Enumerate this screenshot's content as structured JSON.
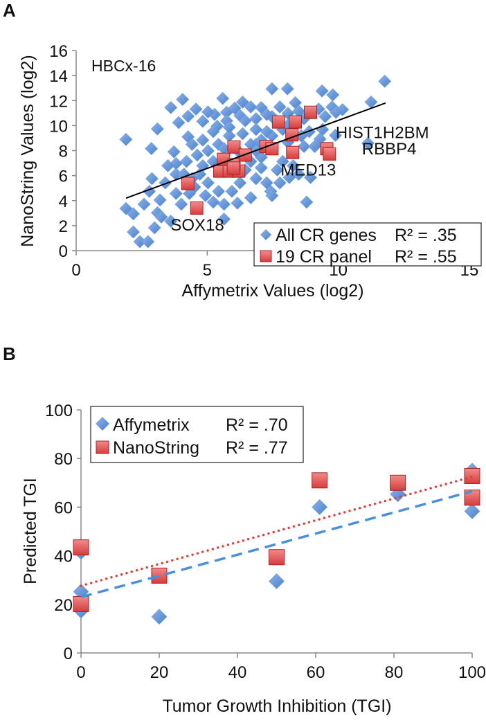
{
  "colors": {
    "affy": "#5a8fd6",
    "affy_dark": "#3f70b8",
    "nano": "#e05454",
    "nano_dark": "#a82222",
    "trend_nano": "#d9453d",
    "trend_affy": "#4a90d9"
  },
  "chart_data": [
    {
      "panel": "A",
      "type": "scatter",
      "annotation": "HBCx-16",
      "xlabel": "Affymetrix Values (log2)",
      "ylabel": "NanoString Values (log2)",
      "xlim": [
        0,
        15
      ],
      "ylim": [
        0,
        16
      ],
      "xticks": [
        "0",
        "5",
        "10",
        "15"
      ],
      "yticks": [
        "0",
        "2",
        "4",
        "6",
        "8",
        "10",
        "12",
        "14",
        "16"
      ],
      "legend_position": "bottom-right",
      "series": [
        {
          "name": "All CR genes",
          "r2_label": "R² = .35",
          "marker": "diamond",
          "points": [
            [
              1.9,
              8.89
            ],
            [
              3.1,
              9.73
            ],
            [
              2.87,
              8.16
            ],
            [
              3.61,
              11.44
            ],
            [
              4.06,
              12.09
            ],
            [
              3.91,
              10.24
            ],
            [
              4.27,
              10.75
            ],
            [
              4.57,
              11.32
            ],
            [
              3.73,
              7.9
            ],
            [
              4.27,
              9.1
            ],
            [
              4.83,
              10.34
            ],
            [
              5.28,
              10.89
            ],
            [
              5.59,
              12.17
            ],
            [
              5.03,
              11.09
            ],
            [
              5.74,
              11.06
            ],
            [
              6.35,
              11.88
            ],
            [
              6.66,
              11.49
            ],
            [
              7.06,
              11.44
            ],
            [
              7.47,
              12.94
            ],
            [
              8.06,
              12.94
            ],
            [
              9.38,
              12.77
            ],
            [
              9.79,
              12.46
            ],
            [
              11.77,
              13.54
            ],
            [
              11.25,
              11.88
            ],
            [
              10.16,
              11.27
            ],
            [
              9.76,
              11.49
            ],
            [
              9.25,
              11.32
            ],
            [
              8.36,
              11.83
            ],
            [
              7.77,
              11.49
            ],
            [
              5.38,
              9.95
            ],
            [
              5.74,
              10.38
            ],
            [
              6.25,
              10.8
            ],
            [
              6.86,
              10.55
            ],
            [
              7.47,
              10.72
            ],
            [
              8.08,
              10.97
            ],
            [
              8.69,
              10.55
            ],
            [
              9.4,
              9.69
            ],
            [
              9.89,
              9.22
            ],
            [
              9.3,
              8.92
            ],
            [
              8.69,
              8.33
            ],
            [
              9.1,
              8.33
            ],
            [
              6.86,
              9.69
            ],
            [
              6.35,
              9.35
            ],
            [
              5.84,
              9.18
            ],
            [
              5.23,
              9.52
            ],
            [
              4.83,
              8.84
            ],
            [
              4.42,
              8.5
            ],
            [
              4.62,
              7.64
            ],
            [
              5.03,
              7.98
            ],
            [
              5.43,
              8.5
            ],
            [
              6.86,
              8.5
            ],
            [
              7.47,
              9.18
            ],
            [
              7.88,
              9.69
            ],
            [
              8.08,
              8.67
            ],
            [
              8.59,
              9.18
            ],
            [
              4.21,
              7.13
            ],
            [
              3.81,
              6.96
            ],
            [
              3.5,
              6.79
            ],
            [
              3.81,
              6.11
            ],
            [
              3.4,
              5.42
            ],
            [
              2.89,
              5.76
            ],
            [
              2.79,
              4.74
            ],
            [
              3.2,
              4.05
            ],
            [
              2.59,
              3.71
            ],
            [
              3.1,
              3.03
            ],
            [
              1.9,
              3.37
            ],
            [
              2.18,
              2.94
            ],
            [
              3.25,
              2.69
            ],
            [
              2.18,
              1.49
            ],
            [
              2.99,
              1.83
            ],
            [
              2.43,
              0.72
            ],
            [
              2.74,
              0.72
            ],
            [
              4.01,
              3.71
            ],
            [
              3.81,
              4.57
            ],
            [
              4.32,
              4.57
            ],
            [
              4.52,
              5.08
            ],
            [
              4.93,
              4.4
            ],
            [
              5.03,
              5.42
            ],
            [
              5.23,
              3.88
            ],
            [
              5.43,
              4.74
            ],
            [
              5.64,
              3.71
            ],
            [
              5.94,
              4.74
            ],
            [
              6.15,
              3.8
            ],
            [
              6.25,
              5.42
            ],
            [
              6.66,
              4.23
            ],
            [
              6.86,
              5.76
            ],
            [
              7.06,
              6.62
            ],
            [
              7.27,
              5.42
            ],
            [
              7.42,
              4.74
            ],
            [
              7.47,
              4.4
            ],
            [
              7.77,
              5.42
            ],
            [
              7.67,
              6.45
            ],
            [
              7.88,
              7.13
            ],
            [
              8.28,
              6.79
            ],
            [
              8.49,
              6.11
            ],
            [
              8.79,
              3.88
            ],
            [
              8.94,
              5.85
            ],
            [
              8.13,
              5.85
            ],
            [
              7.06,
              7.47
            ],
            [
              6.66,
              8.5
            ],
            [
              6.45,
              6.45
            ],
            [
              6.86,
              7.98
            ],
            [
              5.64,
              2.52
            ],
            [
              4.72,
              6.11
            ],
            [
              4.42,
              5.76
            ],
            [
              4.11,
              6.11
            ],
            [
              4.83,
              6.79
            ],
            [
              5.23,
              7.13
            ],
            [
              5.64,
              8.16
            ],
            [
              6.25,
              7.81
            ],
            [
              6.66,
              7.13
            ],
            [
              7.06,
              8.84
            ],
            [
              7.27,
              9.52
            ],
            [
              8.08,
              10.04
            ],
            [
              8.59,
              9.18
            ],
            [
              8.89,
              9.52
            ],
            [
              11.13,
              8.58
            ],
            [
              3.61,
              2.35
            ],
            [
              5.84,
              9.86
            ],
            [
              6.05,
              11.4
            ],
            [
              6.45,
              10.38
            ],
            [
              7.27,
              10.89
            ],
            [
              8.49,
              11.15
            ],
            [
              9.5,
              10.72
            ],
            [
              9.91,
              11.06
            ]
          ]
        },
        {
          "name": "19 CR panel",
          "r2_label": "R² = .55",
          "marker": "square",
          "points": [
            [
              4.26,
              5.37
            ],
            [
              4.6,
              3.4
            ],
            [
              5.48,
              6.36
            ],
            [
              5.84,
              6.36
            ],
            [
              6.2,
              6.36
            ],
            [
              5.62,
              7.3
            ],
            [
              6.02,
              6.87
            ],
            [
              6.02,
              8.29
            ],
            [
              6.45,
              7.64
            ],
            [
              7.24,
              8.32
            ],
            [
              7.47,
              8.15
            ],
            [
              7.72,
              10.29
            ],
            [
              8.36,
              10.29
            ],
            [
              8.23,
              9.26
            ],
            [
              8.26,
              7.85
            ],
            [
              8.94,
              11.06
            ],
            [
              9.56,
              8.15
            ],
            [
              9.66,
              7.73
            ],
            [
              6.0,
              6.6
            ]
          ]
        }
      ],
      "trendline": {
        "x": [
          1.9,
          11.8
        ],
        "y": [
          4.2,
          11.8
        ]
      },
      "gene_labels": [
        {
          "text": "HIST1H2BM",
          "x": 9.9,
          "y": 9.0
        },
        {
          "text": "RBBP4",
          "x": 10.9,
          "y": 7.7
        },
        {
          "text": "MED13",
          "x": 7.8,
          "y": 6.0
        },
        {
          "text": "SOX18",
          "x": 3.6,
          "y": 1.6
        }
      ]
    },
    {
      "panel": "B",
      "type": "scatter",
      "xlabel": "Tumor Growth Inhibition (TGI)",
      "ylabel": "Predicted TGI",
      "xlim": [
        0,
        100
      ],
      "ylim": [
        0,
        100
      ],
      "xticks": [
        "0",
        "20",
        "40",
        "60",
        "80",
        "100"
      ],
      "yticks": [
        "0",
        "20",
        "40",
        "60",
        "80",
        "100"
      ],
      "legend_position": "top-left",
      "series": [
        {
          "name": "Affymetrix",
          "r2_label": "R² = .70",
          "marker": "diamond",
          "points": [
            [
              0,
              25.2
            ],
            [
              0,
              17.4
            ],
            [
              0,
              41.6
            ],
            [
              20,
              14.9
            ],
            [
              50,
              29.5
            ],
            [
              61,
              60
            ],
            [
              81,
              65.3
            ],
            [
              100,
              58.3
            ],
            [
              100,
              75
            ]
          ],
          "trendline": {
            "style": "dashed",
            "x": [
              0,
              100
            ],
            "y": [
              23,
              66.5
            ]
          }
        },
        {
          "name": "NanoString",
          "r2_label": "R² = .77",
          "marker": "square",
          "points": [
            [
              0,
              43.4
            ],
            [
              0,
              20.1
            ],
            [
              20,
              31.8
            ],
            [
              50,
              39.4
            ],
            [
              61,
              71
            ],
            [
              81,
              70
            ],
            [
              100,
              72.8
            ],
            [
              100,
              63.9
            ]
          ],
          "trendline": {
            "style": "dotted",
            "x": [
              0,
              100
            ],
            "y": [
              27.6,
              72.5
            ]
          }
        }
      ]
    }
  ]
}
